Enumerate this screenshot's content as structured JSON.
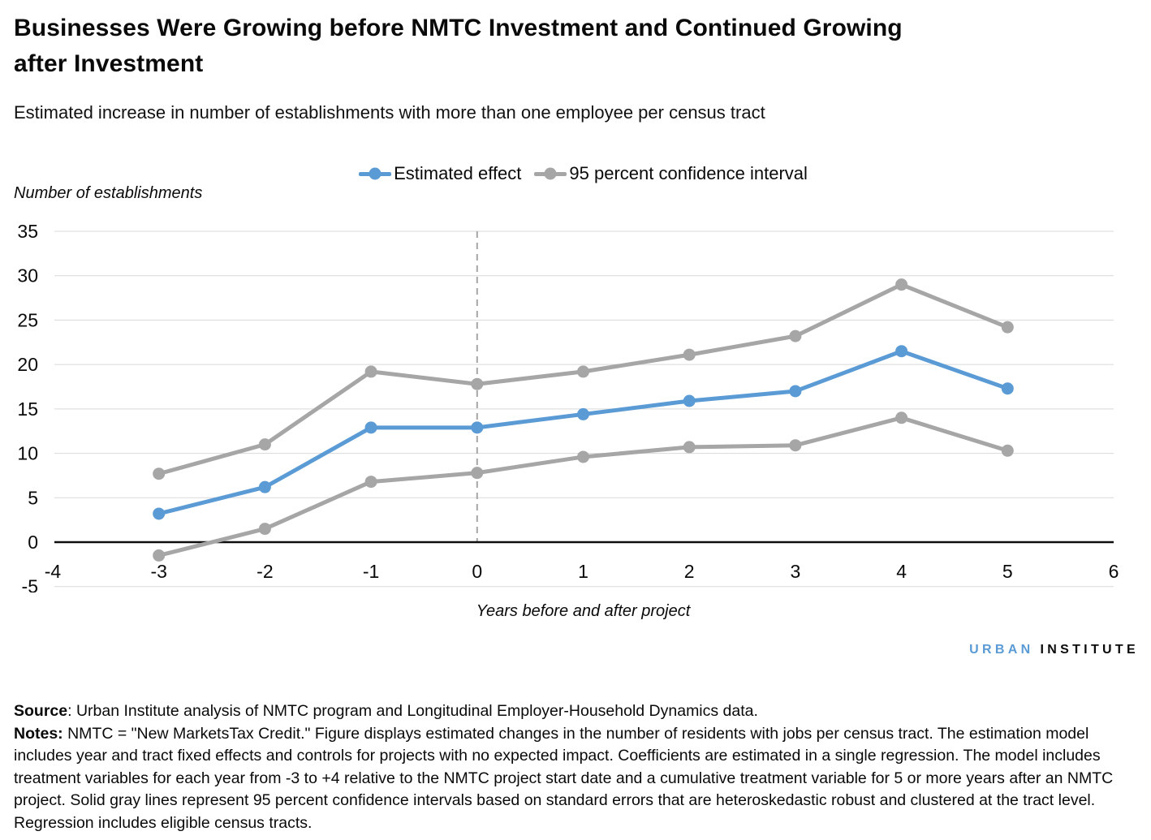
{
  "header": {
    "title_line1": "Businesses Were Growing before NMTC Investment and Continued Growing",
    "title_line2": "after Investment",
    "subtitle": "Estimated increase in number of establishments with more than one employee per census tract"
  },
  "legend": {
    "items": [
      {
        "label": "Estimated effect",
        "color": "#5b9bd5"
      },
      {
        "label": "95 percent confidence interval",
        "color": "#a6a6a6"
      }
    ]
  },
  "chart_data": {
    "type": "line",
    "title": "Businesses Were Growing before NMTC Investment and Continued Growing after Investment",
    "subtitle": "Estimated increase in number of establishments with more than one employee per census tract",
    "xlabel": "Years before and after project",
    "ylabel": "Number of establishments",
    "x": [
      -3,
      -2,
      -1,
      0,
      1,
      2,
      3,
      4,
      5
    ],
    "series": [
      {
        "id": "upper-ci",
        "name": "95 percent confidence interval (upper)",
        "color": "#a6a6a6",
        "values": [
          7.7,
          11.0,
          19.2,
          17.8,
          19.2,
          21.1,
          23.2,
          29.0,
          24.2
        ]
      },
      {
        "id": "lower-ci",
        "name": "95 percent confidence interval (lower)",
        "color": "#a6a6a6",
        "values": [
          -1.5,
          1.5,
          6.8,
          7.8,
          9.6,
          10.7,
          10.9,
          14.0,
          10.3
        ]
      },
      {
        "id": "estimated-effect",
        "name": "Estimated effect",
        "color": "#5b9bd5",
        "values": [
          3.2,
          6.2,
          12.9,
          12.9,
          14.4,
          15.9,
          17.0,
          21.5,
          17.3
        ]
      }
    ],
    "xlim": [
      -4,
      6
    ],
    "ylim": [
      -5,
      35
    ],
    "x_ticks": [
      -4,
      -3,
      -2,
      -1,
      0,
      1,
      2,
      3,
      4,
      5,
      6
    ],
    "y_ticks": [
      35,
      30,
      25,
      20,
      15,
      10,
      5,
      0,
      -5
    ],
    "grid": true,
    "reference_line_x": 0,
    "legend_position": "top-center",
    "colors": {
      "estimated": "#5b9bd5",
      "confidence": "#a6a6a6",
      "gridline": "#d9d9d9",
      "zero_axis": "#0d0d0d",
      "reference_line": "#a6a6a6"
    }
  },
  "footer": {
    "logo": {
      "urban": "URBAN",
      "institute": "INSTITUTE",
      "urban_color": "#5b9bd5",
      "institute_color": "#0a0a0a"
    },
    "source_label": "Source",
    "source_text": ": Urban Institute analysis of NMTC program and Longitudinal Employer-Household Dynamics data.",
    "notes_label": "Notes:",
    "notes_text": " NMTC = \"New MarketsTax Credit.\" Figure displays estimated changes in the number of residents with jobs per census tract. The estimation model includes year and tract fixed effects and controls for projects with no expected impact. Coefficients are estimated in a single regression. The model includes treatment variables for each year from -3 to +4 relative to the NMTC project start date and a cumulative treatment variable for 5 or more years after an NMTC project.  Solid gray lines represent 95 percent confidence intervals based on standard errors that are heteroskedastic robust and clustered at the tract level. Regression includes eligible census tracts."
  }
}
